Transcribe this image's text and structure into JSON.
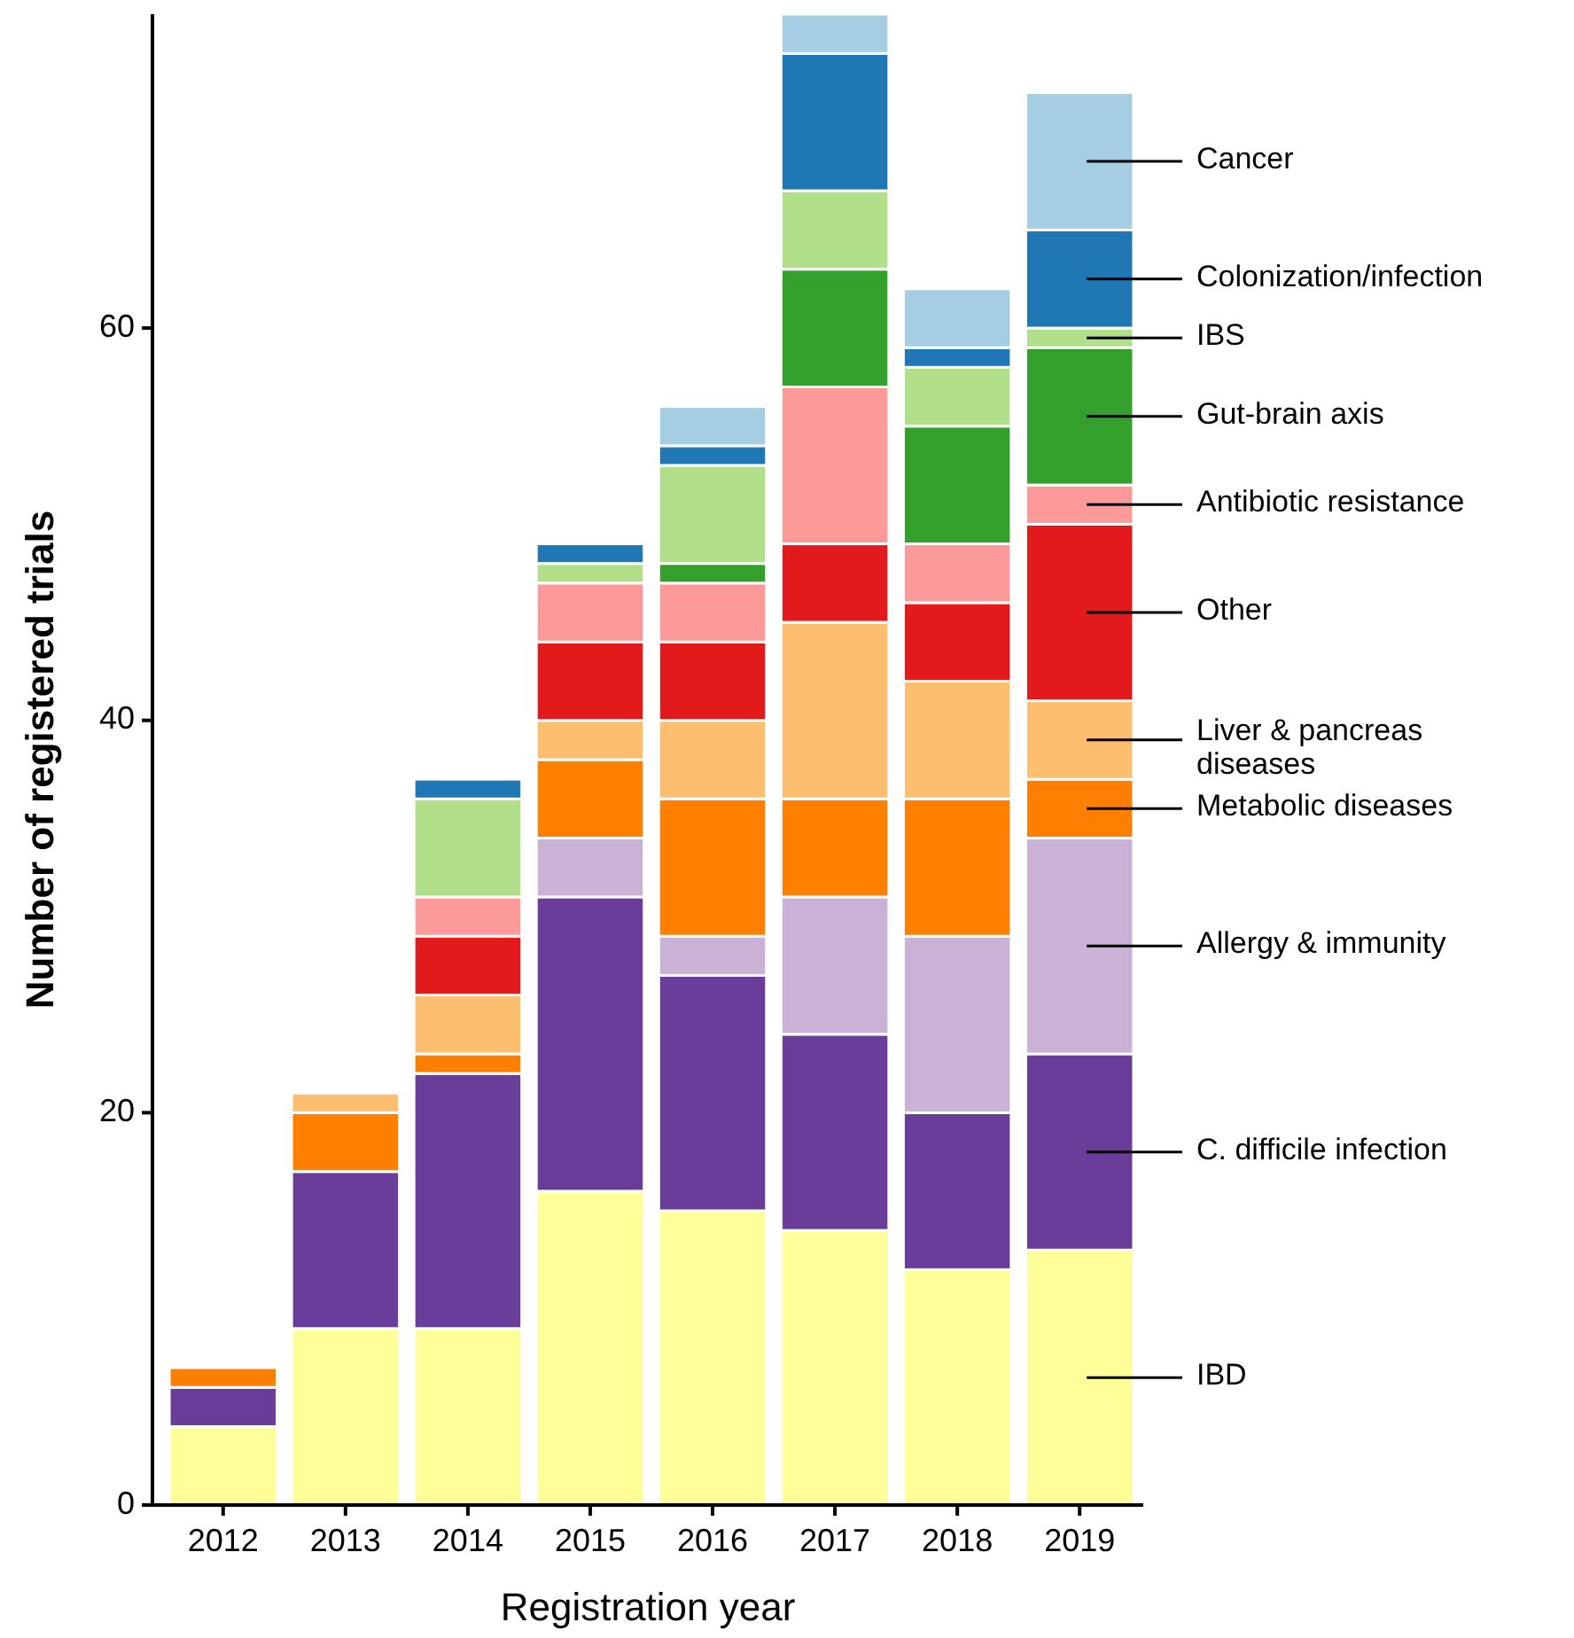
{
  "chart_data": {
    "type": "bar",
    "stacked": true,
    "xlabel": "Registration year",
    "ylabel": "Number of registered trials",
    "categories": [
      "2012",
      "2013",
      "2014",
      "2015",
      "2016",
      "2017",
      "2018",
      "2019"
    ],
    "ylim": [
      0,
      76
    ],
    "yticks": [
      0,
      20,
      40,
      60
    ],
    "grid": false,
    "legend": "right",
    "series": [
      {
        "name": "IBD",
        "color": "#ffff99",
        "values": [
          4,
          9,
          9,
          16,
          15,
          14,
          12,
          13
        ]
      },
      {
        "name": "C. difficile infection",
        "color": "#6a3d9a",
        "values": [
          2,
          8,
          13,
          15,
          12,
          10,
          8,
          10
        ]
      },
      {
        "name": "Allergy & immunity",
        "color": "#cab2d6",
        "values": [
          0,
          0,
          0,
          3,
          2,
          7,
          9,
          11
        ]
      },
      {
        "name": "Metabolic diseases",
        "color": "#ff7f00",
        "values": [
          1,
          3,
          1,
          4,
          7,
          5,
          7,
          3
        ]
      },
      {
        "name": "Liver & pancreas diseases",
        "color": "#fdbf6f",
        "values": [
          0,
          1,
          3,
          2,
          4,
          9,
          6,
          4
        ]
      },
      {
        "name": "Other",
        "color": "#e31a1c",
        "values": [
          0,
          0,
          3,
          4,
          4,
          4,
          4,
          9
        ]
      },
      {
        "name": "Antibiotic resistance",
        "color": "#fb9a99",
        "values": [
          0,
          0,
          2,
          3,
          3,
          8,
          3,
          2
        ]
      },
      {
        "name": "Gut-brain axis",
        "color": "#33a02c",
        "values": [
          0,
          0,
          0,
          0,
          1,
          6,
          6,
          7
        ]
      },
      {
        "name": "IBS",
        "color": "#b2df8a",
        "values": [
          0,
          0,
          5,
          1,
          5,
          4,
          3,
          1
        ]
      },
      {
        "name": "Colonization/infection",
        "color": "#1f78b4",
        "values": [
          0,
          0,
          1,
          1,
          1,
          7,
          1,
          5
        ]
      },
      {
        "name": "Cancer",
        "color": "#a6cee3",
        "values": [
          0,
          0,
          0,
          0,
          2,
          2,
          3,
          7
        ]
      }
    ]
  }
}
